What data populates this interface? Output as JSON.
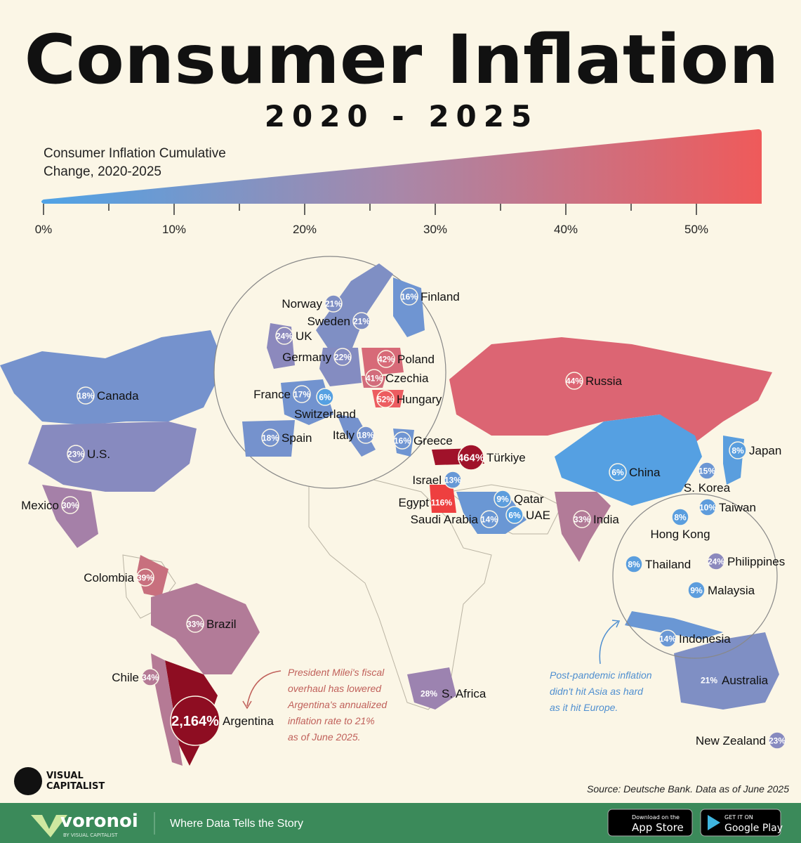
{
  "header": {
    "title": "Consumer Inflation",
    "subtitle": "2020 - 2025"
  },
  "legend": {
    "title_lines": [
      "Consumer Inflation Cumulative",
      "Change, 2020-2025"
    ],
    "ticks": [
      "0%",
      "10%",
      "20%",
      "30%",
      "40%",
      "50%"
    ],
    "colors": [
      "#4fa3e6",
      "#a987a8",
      "#ef5a5a"
    ]
  },
  "countries": [
    {
      "name": "Norway",
      "label": "21%",
      "color": "#7f8fc4"
    },
    {
      "name": "Sweden",
      "label": "21%",
      "color": "#7f8fc4"
    },
    {
      "name": "Finland",
      "label": "16%",
      "color": "#6f95d2"
    },
    {
      "name": "UK",
      "label": "24%",
      "color": "#8c89bd"
    },
    {
      "name": "Germany",
      "label": "22%",
      "color": "#848cc1"
    },
    {
      "name": "Poland",
      "label": "42%",
      "color": "#d76a78"
    },
    {
      "name": "Czechia",
      "label": "41%",
      "color": "#d26c7b"
    },
    {
      "name": "Hungary",
      "label": "52%",
      "color": "#ec5c60"
    },
    {
      "name": "France",
      "label": "17%",
      "color": "#7293cf"
    },
    {
      "name": "Switzerland",
      "label": "6%",
      "color": "#55a0e2"
    },
    {
      "name": "Spain",
      "label": "18%",
      "color": "#7592cd"
    },
    {
      "name": "Italy",
      "label": "18%",
      "color": "#7592cd"
    },
    {
      "name": "Greece",
      "label": "16%",
      "color": "#6f95d2"
    },
    {
      "name": "Russia",
      "label": "44%",
      "color": "#dc6573"
    },
    {
      "name": "Canada",
      "label": "18%",
      "color": "#7592cd"
    },
    {
      "name": "U.S.",
      "label": "23%",
      "color": "#878abf"
    },
    {
      "name": "Mexico",
      "label": "30%",
      "color": "#a580a8"
    },
    {
      "name": "Colombia",
      "label": "39%",
      "color": "#c8707e"
    },
    {
      "name": "Brazil",
      "label": "33%",
      "color": "#b27b98"
    },
    {
      "name": "Chile",
      "label": "34%",
      "color": "#b57a95"
    },
    {
      "name": "Argentina",
      "label": "2,164%",
      "color": "#8e0d22"
    },
    {
      "name": "Türkiye",
      "label": "464%",
      "color": "#a0122a"
    },
    {
      "name": "Israel",
      "label": "13%",
      "color": "#6798d6"
    },
    {
      "name": "Egypt",
      "label": "116%",
      "color": "#ee3f3f"
    },
    {
      "name": "Saudi Arabia",
      "label": "14%",
      "color": "#6a97d4"
    },
    {
      "name": "Qatar",
      "label": "9%",
      "color": "#5c9ddd"
    },
    {
      "name": "UAE",
      "label": "6%",
      "color": "#55a0e2"
    },
    {
      "name": "India",
      "label": "33%",
      "color": "#b27b98"
    },
    {
      "name": "China",
      "label": "6%",
      "color": "#55a0e2"
    },
    {
      "name": "Japan",
      "label": "8%",
      "color": "#5a9ede"
    },
    {
      "name": "S. Korea",
      "label": "15%",
      "color": "#6c96d3"
    },
    {
      "name": "Taiwan",
      "label": "10%",
      "color": "#5e9cdc"
    },
    {
      "name": "Hong Kong",
      "label": "8%",
      "color": "#5a9ede"
    },
    {
      "name": "Thailand",
      "label": "8%",
      "color": "#5a9ede"
    },
    {
      "name": "Philippines",
      "label": "24%",
      "color": "#8c89bd"
    },
    {
      "name": "Malaysia",
      "label": "9%",
      "color": "#5c9ddd"
    },
    {
      "name": "Indonesia",
      "label": "14%",
      "color": "#6a97d4"
    },
    {
      "name": "Australia",
      "label": "21%",
      "color": "#7f8fc4"
    },
    {
      "name": "New Zealand",
      "label": "23%",
      "color": "#878abf"
    },
    {
      "name": "S. Africa",
      "label": "28%",
      "color": "#9c83b0"
    }
  ],
  "annotations": {
    "argentina": [
      "President Milei's fiscal",
      "overhaul has lowered",
      "Argentina's annualized",
      "inflation rate to 21%",
      "as of June 2025."
    ],
    "asia": [
      "Post-pandemic inflation",
      "didn't hit Asia as hard",
      "as it hit Europe."
    ]
  },
  "brand": {
    "logo": [
      "VISUAL",
      "CAPITALIST"
    ]
  },
  "source": "Source: Deutsche Bank. Data as of June 2025",
  "footer": {
    "name": "voronoi",
    "by": "BY VISUAL CAPITALIST",
    "tagline": "Where Data Tells the Story",
    "app_store": [
      "Download on the",
      "App Store"
    ],
    "google_play": [
      "GET IT ON",
      "Google Play"
    ]
  }
}
